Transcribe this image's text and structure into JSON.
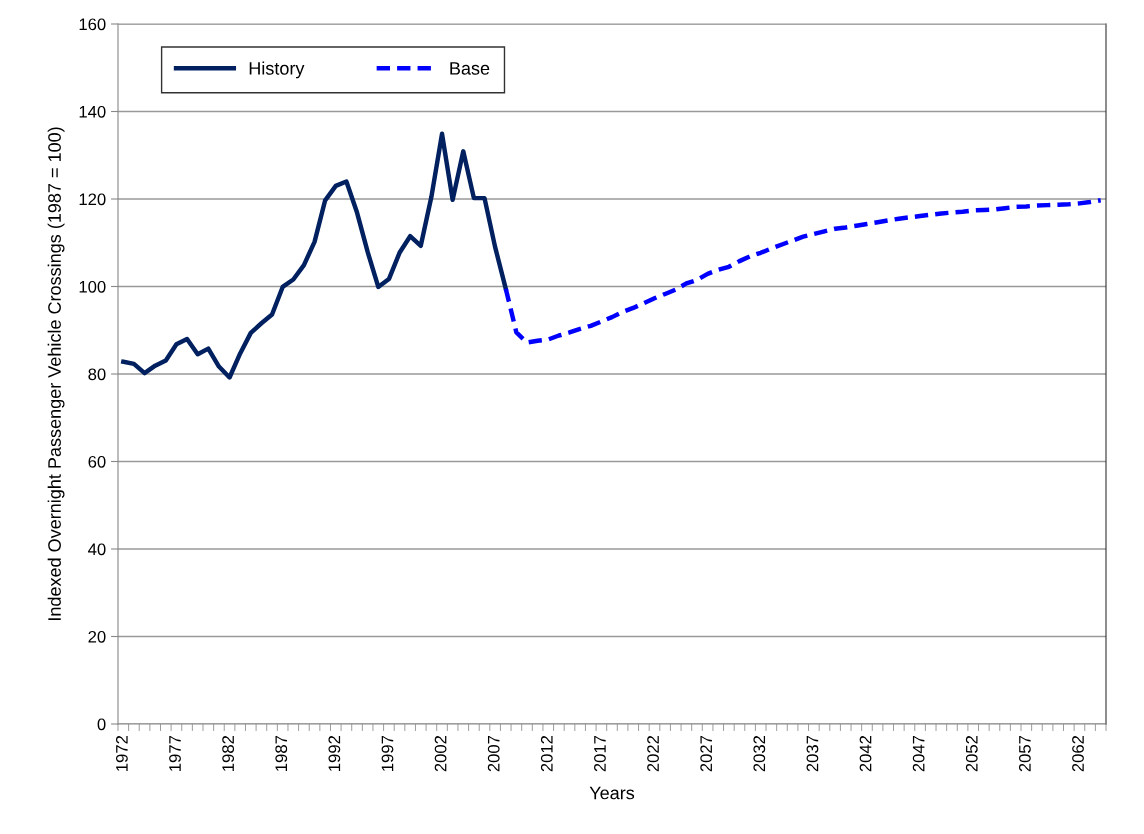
{
  "chart_data": {
    "type": "line",
    "ylabel": "Indexed Overnight Passenger Vehicle Crossings (1987 = 100)",
    "xlabel": "Years",
    "categories": [
      "1972",
      null,
      null,
      null,
      null,
      "1977",
      null,
      null,
      null,
      null,
      "1982",
      null,
      null,
      null,
      null,
      "1987",
      null,
      null,
      null,
      null,
      "1992",
      null,
      null,
      null,
      null,
      "1997",
      null,
      null,
      null,
      null,
      "2002",
      null,
      null,
      null,
      null,
      "2007",
      null,
      null,
      null,
      null,
      "2012",
      null,
      null,
      null,
      null,
      "2017",
      null,
      null,
      null,
      null,
      "2022",
      null,
      null,
      null,
      null,
      "2027",
      null,
      null,
      null,
      null,
      "2032",
      null,
      null,
      null,
      null,
      "2037",
      null,
      null,
      null,
      null,
      "2042",
      null,
      null,
      null,
      null,
      "2047",
      null,
      null,
      null,
      null,
      "2052",
      null,
      null,
      null,
      null,
      "2057",
      null,
      null,
      null,
      null,
      "2062",
      null,
      null
    ],
    "series": [
      {
        "name": "History",
        "color": "#002060",
        "line_style": "solid",
        "values": [
          82.8,
          82.3,
          80.2,
          81.9,
          83.1,
          86.8,
          88.0,
          84.5,
          85.8,
          81.7,
          79.2,
          84.7,
          89.4,
          91.6,
          93.6,
          99.9,
          101.6,
          104.9,
          110.2,
          119.7,
          123.0,
          124.0,
          116.9,
          107.9,
          99.9,
          101.7,
          107.7,
          111.5,
          109.3,
          120.5,
          134.9,
          119.8,
          130.9,
          120.2,
          120.2,
          109.0,
          99.5,
          null,
          null,
          null,
          null,
          null,
          null,
          null,
          null,
          null,
          null,
          null,
          null,
          null,
          null,
          null,
          null,
          null,
          null,
          null,
          null,
          null,
          null,
          null,
          null,
          null,
          null,
          null,
          null,
          null,
          null,
          null,
          null,
          null,
          null,
          null,
          null,
          null,
          null,
          null,
          null,
          null,
          null,
          null,
          null,
          null,
          null,
          null,
          null,
          null,
          null,
          null,
          null,
          null,
          null,
          null,
          null
        ]
      },
      {
        "name": "Base",
        "color": "#0000ff",
        "line_style": "dashed",
        "values": [
          null,
          null,
          null,
          null,
          null,
          null,
          null,
          null,
          null,
          null,
          null,
          null,
          null,
          null,
          null,
          null,
          null,
          null,
          null,
          null,
          null,
          null,
          null,
          null,
          null,
          null,
          null,
          null,
          null,
          null,
          null,
          null,
          null,
          null,
          null,
          null,
          99.5,
          89.5,
          87.2,
          87.6,
          87.9,
          88.8,
          89.5,
          90.3,
          91.0,
          92.0,
          93.0,
          94.2,
          95.1,
          96.2,
          97.3,
          98.3,
          99.3,
          100.7,
          101.5,
          102.9,
          103.8,
          104.5,
          105.8,
          106.9,
          107.7,
          108.7,
          109.6,
          110.5,
          111.4,
          112.0,
          112.6,
          113.2,
          113.5,
          113.9,
          114.3,
          114.7,
          115.1,
          115.5,
          115.8,
          116.1,
          116.4,
          116.7,
          116.9,
          117.1,
          117.4,
          117.5,
          117.6,
          117.9,
          118.2,
          118.3,
          118.5,
          118.6,
          118.7,
          118.8,
          119.0,
          119.3,
          119.7
        ]
      }
    ],
    "ylim": [
      0,
      160
    ],
    "yticks": [
      0,
      20,
      40,
      60,
      80,
      100,
      120,
      140,
      160
    ],
    "grid": "y",
    "legend": "top left",
    "marker": "none"
  }
}
